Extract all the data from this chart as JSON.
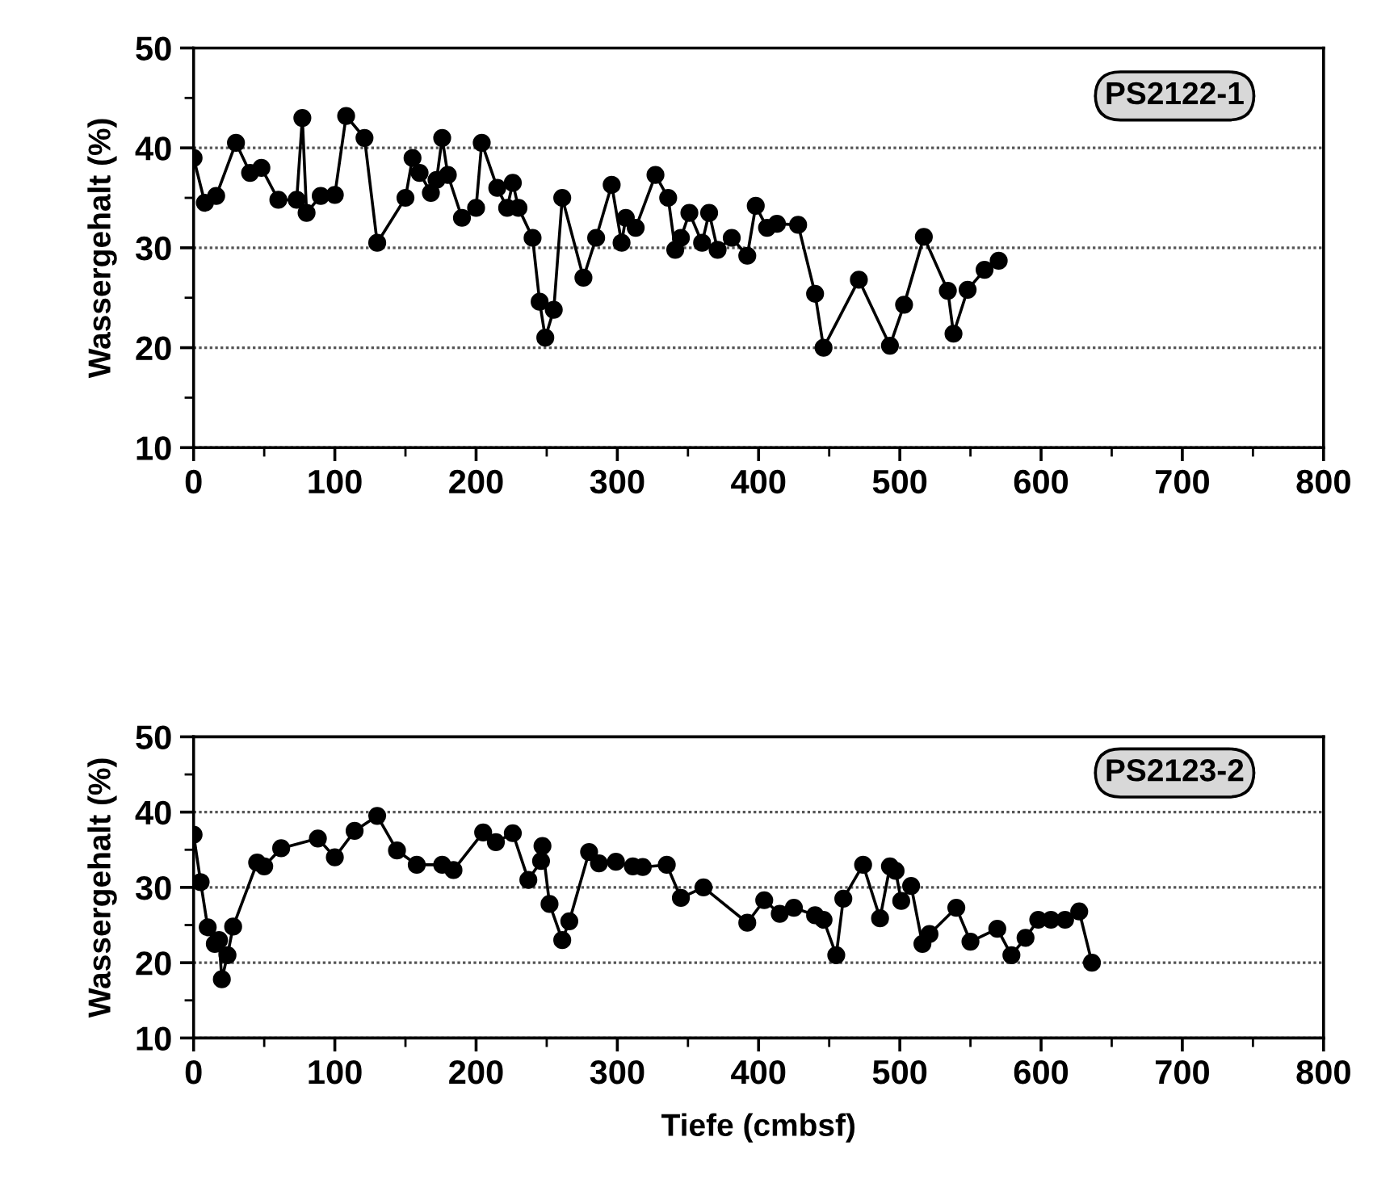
{
  "chart_data": [
    {
      "type": "line",
      "ylabel": "Wassergehalt (%)",
      "annotations": [
        "PS2122-1"
      ],
      "xlim": [
        0,
        800
      ],
      "xticks": [
        0,
        100,
        200,
        300,
        400,
        500,
        600,
        700,
        800
      ],
      "ylim": [
        10,
        50
      ],
      "yticks": [
        10,
        20,
        30,
        40,
        50
      ],
      "grid": "y",
      "marker": "circle",
      "line_style": "solid",
      "series": [
        {
          "color": "#000000",
          "x": [
            0,
            8,
            16,
            30,
            40,
            48,
            60,
            73,
            77,
            80,
            90,
            100,
            108,
            121,
            130,
            150,
            155,
            160,
            168,
            172,
            176,
            180,
            190,
            200,
            204,
            215,
            222,
            226,
            230,
            240,
            245,
            249,
            255,
            261,
            276,
            285,
            296,
            303,
            306,
            313,
            327,
            336,
            341,
            345,
            351,
            360,
            365,
            371,
            381,
            392,
            398,
            406,
            413,
            428,
            440,
            446,
            471,
            493,
            503,
            517,
            534,
            538,
            548,
            560,
            570
          ],
          "values": [
            39,
            34.5,
            35.2,
            40.5,
            37.5,
            38,
            34.8,
            34.8,
            43,
            33.5,
            35.2,
            35.3,
            43.2,
            41,
            30.5,
            35,
            39,
            37.5,
            35.5,
            36.8,
            41,
            37.3,
            33,
            34,
            40.5,
            36,
            34,
            36.5,
            34,
            31,
            24.6,
            21,
            23.8,
            35,
            27,
            31,
            36.3,
            30.5,
            33,
            32,
            37.3,
            35,
            29.8,
            31,
            33.5,
            30.5,
            33.5,
            29.8,
            31,
            29.2,
            34.2,
            32,
            32.4,
            32.3,
            25.4,
            20,
            26.8,
            20.2,
            24.3,
            31.1,
            25.7,
            21.4,
            25.8,
            27.8,
            28.7
          ]
        }
      ]
    },
    {
      "type": "line",
      "xlabel": "Tiefe (cmbsf)",
      "ylabel": "Wassergehalt (%)",
      "annotations": [
        "PS2123-2"
      ],
      "xlim": [
        0,
        800
      ],
      "xticks": [
        0,
        100,
        200,
        300,
        400,
        500,
        600,
        700,
        800
      ],
      "ylim": [
        10,
        50
      ],
      "yticks": [
        10,
        20,
        30,
        40,
        50
      ],
      "grid": "y",
      "marker": "circle",
      "line_style": "solid",
      "series": [
        {
          "color": "#000000",
          "x": [
            0,
            5,
            10,
            15,
            18,
            20,
            24,
            28,
            45,
            50,
            62,
            88,
            100,
            114,
            130,
            144,
            158,
            176,
            184,
            205,
            214,
            226,
            237,
            246,
            247,
            252,
            261,
            266,
            280,
            287,
            299,
            311,
            318,
            335,
            345,
            361,
            392,
            404,
            415,
            425,
            440,
            446,
            455,
            460,
            474,
            486,
            493,
            497,
            501,
            508,
            516,
            521,
            540,
            550,
            569,
            579,
            589,
            598,
            607,
            617,
            627,
            636
          ],
          "values": [
            37,
            30.7,
            24.7,
            22.5,
            23,
            17.8,
            21,
            24.8,
            33.3,
            32.8,
            35.2,
            36.5,
            34,
            37.5,
            39.5,
            34.9,
            33,
            33,
            32.3,
            37.3,
            36,
            37.2,
            31,
            33.5,
            35.5,
            27.8,
            23,
            25.5,
            34.7,
            33.2,
            33.4,
            32.8,
            32.7,
            33,
            28.6,
            30,
            25.3,
            28.3,
            26.5,
            27.3,
            26.3,
            25.7,
            21,
            28.5,
            33,
            25.9,
            32.8,
            32.2,
            28.2,
            30.2,
            22.5,
            23.8,
            27.3,
            22.8,
            24.5,
            21,
            23.3,
            25.7,
            25.7,
            25.7,
            26.8,
            20
          ]
        }
      ]
    }
  ]
}
